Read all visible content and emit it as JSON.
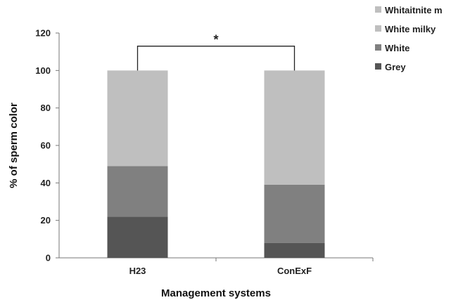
{
  "chart_data": {
    "type": "bar",
    "stacked": true,
    "categories": [
      "H23",
      "ConExF"
    ],
    "series": [
      {
        "name": "Grey",
        "values": [
          22,
          8
        ],
        "color": "#555555"
      },
      {
        "name": "White",
        "values": [
          27,
          31
        ],
        "color": "#808080"
      },
      {
        "name": "White milky",
        "values": [
          51,
          61
        ],
        "color": "#bfbfbf"
      },
      {
        "name": "Whitaitnite m",
        "values": [
          0,
          0
        ],
        "color": "#bfbfbf"
      }
    ],
    "xlabel": "Management systems",
    "ylabel": "% of sperm color",
    "ylim": [
      0,
      120
    ],
    "yticks": [
      0,
      20,
      40,
      60,
      80,
      100,
      120
    ],
    "grid": false,
    "legend_position": "top-right",
    "annotation": {
      "text": "*",
      "between": [
        "H23",
        "ConExF"
      ],
      "y": 113
    }
  }
}
